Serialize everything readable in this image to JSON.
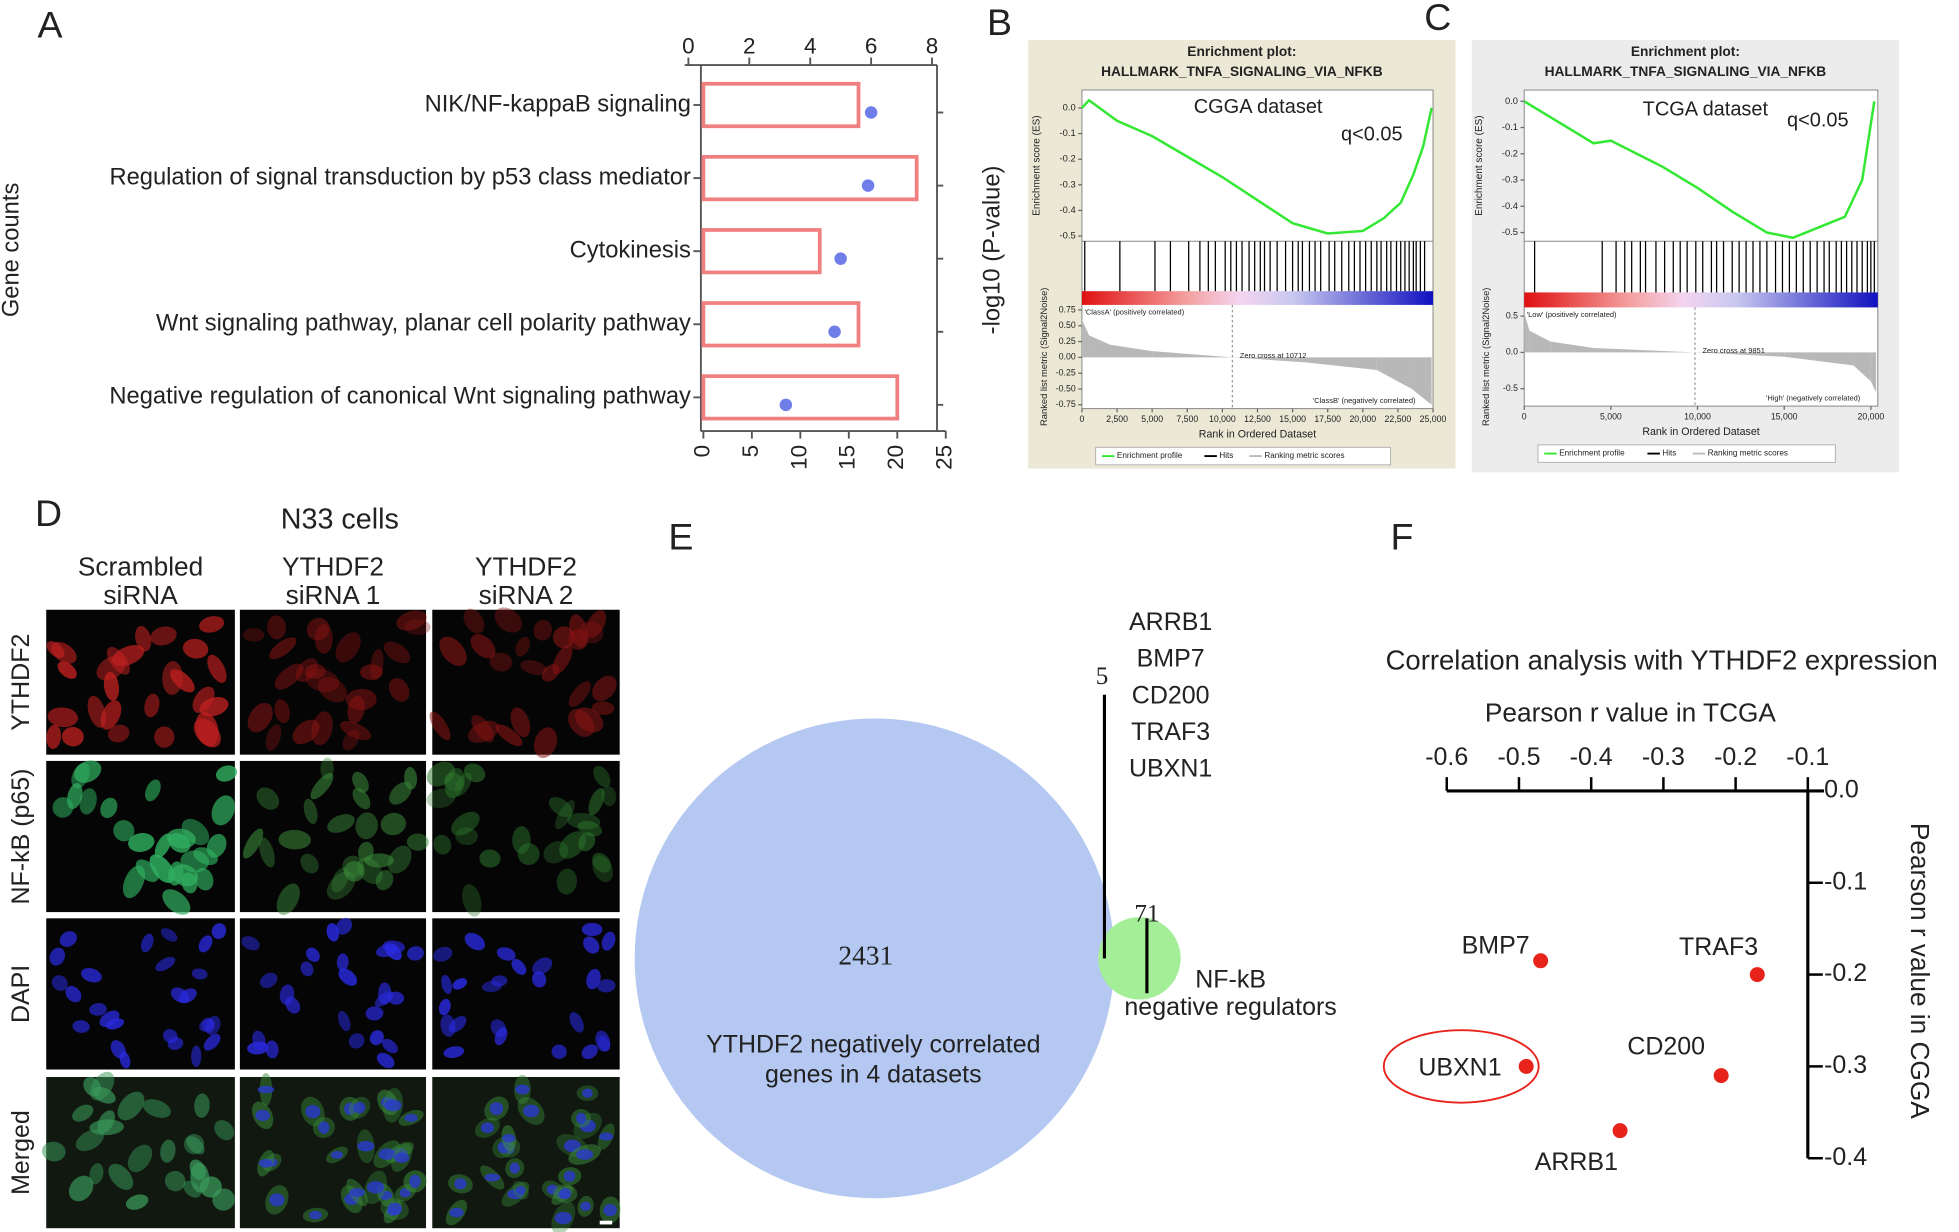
{
  "panel_labels": [
    "A",
    "B",
    "C",
    "D",
    "E",
    "F"
  ],
  "chart_data": [
    {
      "type": "bar",
      "orientation": "horizontal",
      "categories": [
        "NIK/NF-kappaB signaling",
        "Regulation of signal transduction by p53 class mediator",
        "Cytokinesis",
        "Wnt signaling pathway, planar cell polarity pathway",
        "Negative regulation of canonical Wnt signaling pathway"
      ],
      "values": [
        16,
        22,
        12,
        16,
        20
      ],
      "color": "#f08080",
      "xlabel": "Gene counts",
      "xlim": [
        0,
        25
      ],
      "xticks": [
        0,
        5,
        10,
        15,
        20,
        25
      ],
      "dot_values": [
        6.0,
        5.9,
        5.0,
        4.8,
        3.2
      ],
      "dot_color": "#6f7ee8",
      "x2label": "-log10 (P-value)",
      "x2lim": [
        0,
        8
      ],
      "x2ticks": [
        0,
        2,
        4,
        6,
        8
      ]
    },
    {
      "type": "gsea",
      "background": "#ece8d6",
      "title": "Enrichment plot:",
      "subtitle": "HALLMARK_TNFA_SIGNALING_VIA_NFKB",
      "annotation": "CGGA dataset",
      "annotation2": "q<0.05",
      "ylabel": "Enrichment score (ES)",
      "ylim": [
        -0.52,
        0.07
      ],
      "yticks": [
        {
          "value": 0,
          "label": "0.0"
        },
        -0.1,
        -0.2,
        -0.3,
        -0.4,
        -0.5
      ],
      "x": [
        0,
        500,
        2500,
        5000,
        7500,
        10000,
        12500,
        15000,
        17500,
        20000,
        21500,
        22700,
        23600,
        24300,
        24900
      ],
      "values": [
        0,
        0.03,
        -0.05,
        -0.11,
        -0.19,
        -0.27,
        -0.36,
        -0.45,
        -0.49,
        -0.48,
        -0.43,
        -0.37,
        -0.26,
        -0.15,
        0
      ],
      "color": "#33e833",
      "hits": [
        200,
        2700,
        5200,
        6300,
        7600,
        8400,
        9000,
        9500,
        10200,
        10600,
        11000,
        11400,
        11900,
        12300,
        12700,
        13000,
        13400,
        13900,
        14500,
        15000,
        15400,
        15700,
        16200,
        16600,
        17000,
        17600,
        18000,
        18500,
        19000,
        19400,
        19800,
        20200,
        20600,
        21000,
        21300,
        21700,
        22000,
        22400,
        22700,
        23000,
        23300,
        23600,
        23800,
        24100,
        24400
      ],
      "metric_label": "Ranked list metric (Signal2Noise)",
      "metric_lim": [
        -0.81,
        0.83
      ],
      "metric_ticks": [
        {
          "value": 0.75,
          "label": "0.75"
        },
        {
          "value": 0.5,
          "label": "0.50"
        },
        {
          "value": 0.25,
          "label": "0.25"
        },
        {
          "value": 0,
          "label": "0.00"
        },
        {
          "value": -0.25,
          "label": "-0.25"
        },
        {
          "value": -0.5,
          "label": "-0.50"
        },
        {
          "value": -0.75,
          "label": "-0.75"
        }
      ],
      "metric_x": [
        0,
        500,
        2000,
        5000,
        10712,
        16000,
        21000,
        23500,
        24900
      ],
      "metric": [
        0.6,
        0.35,
        0.2,
        0.1,
        0,
        -0.08,
        -0.2,
        -0.5,
        -0.75
      ],
      "pos_label": "'ClassA' (positively correlated)",
      "zero_cross": "Zero cross at 10712",
      "neg_label": "'ClassB' (negatively correlated)",
      "xlabel": "Rank in Ordered Dataset",
      "xlim": [
        0,
        25000
      ],
      "xticks": [
        0,
        {
          "value": 2500,
          "label": "2,500"
        },
        {
          "value": 5000,
          "label": "5,000"
        },
        {
          "value": 7500,
          "label": "7,500"
        },
        {
          "value": 10000,
          "label": "10,000"
        },
        {
          "value": 12500,
          "label": "12,500"
        },
        {
          "value": 15000,
          "label": "15,000"
        },
        {
          "value": 17500,
          "label": "17,500"
        },
        {
          "value": 20000,
          "label": "20,000"
        },
        {
          "value": 22500,
          "label": "22,500"
        },
        {
          "value": 25000,
          "label": "25,000"
        }
      ],
      "legend": [
        "Enrichment profile",
        "Hits",
        "Ranking metric scores"
      ]
    },
    {
      "type": "gsea",
      "background": "#ececec",
      "title": "Enrichment plot:",
      "subtitle": "HALLMARK_TNFA_SIGNALING_VIA_NFKB",
      "annotation": "TCGA dataset",
      "annotation2": "q<0.05",
      "ylabel": "Enrichment score (ES)",
      "ylim": [
        -0.533,
        0.043
      ],
      "yticks": [
        {
          "value": 0,
          "label": "0.0"
        },
        -0.1,
        -0.2,
        -0.3,
        -0.4,
        -0.5
      ],
      "x": [
        0,
        2000,
        4000,
        5000,
        8000,
        10000,
        12000,
        14000,
        15500,
        17000,
        18500,
        19500,
        20200
      ],
      "values": [
        0,
        -0.08,
        -0.16,
        -0.15,
        -0.25,
        -0.33,
        -0.42,
        -0.5,
        -0.52,
        -0.48,
        -0.44,
        -0.3,
        0
      ],
      "color": "#33e833",
      "hits": [
        600,
        4500,
        5300,
        5800,
        6200,
        6700,
        7000,
        7600,
        8100,
        8600,
        9000,
        9400,
        9900,
        10300,
        10800,
        11100,
        11500,
        12000,
        12400,
        12800,
        13200,
        13600,
        14000,
        14500,
        14900,
        15300,
        15700,
        16100,
        16500,
        16900,
        17300,
        17600,
        18000,
        18300,
        18600,
        18900,
        19200,
        19500,
        19800,
        20000,
        20200
      ],
      "metric_label": "Ranked list metric (Signal2Noise)",
      "metric_lim": [
        -0.74,
        0.62
      ],
      "metric_ticks": [
        0.5,
        {
          "value": 0,
          "label": "0.0"
        },
        -0.5
      ],
      "metric_x": [
        0,
        300,
        1500,
        4000,
        9851,
        15000,
        19000,
        20000,
        20300
      ],
      "metric": [
        0.55,
        0.3,
        0.15,
        0.06,
        0,
        -0.06,
        -0.18,
        -0.4,
        -0.55
      ],
      "pos_label": "'Low' (positively correlated)",
      "zero_cross": "Zero cross at 9851",
      "neg_label": "'High' (negatively correlated)",
      "xlabel": "Rank in Ordered Dataset",
      "xlim": [
        0,
        20400
      ],
      "xticks": [
        0,
        {
          "value": 5000,
          "label": "5,000"
        },
        {
          "value": 10000,
          "label": "10,000"
        },
        {
          "value": 15000,
          "label": "15,000"
        },
        {
          "value": 20000,
          "label": "20,000"
        }
      ],
      "legend": [
        "Enrichment profile",
        "Hits",
        "Ranking metric scores"
      ]
    },
    {
      "type": "scatter",
      "title": "Correlation analysis with YTHDF2 expression",
      "xlabel": "Pearson r value in TCGA",
      "ylabel": "Pearson r value in CGGA",
      "labels": [
        "BMP7",
        "TRAF3",
        "UBXN1",
        "CD200",
        "ARRB1"
      ],
      "x": [
        -0.47,
        -0.17,
        -0.49,
        -0.22,
        -0.36
      ],
      "values": [
        -0.185,
        -0.2,
        -0.3,
        -0.31,
        -0.37
      ],
      "color": "#e8231b",
      "xlim": [
        -0.6,
        -0.1
      ],
      "xticks": [
        -0.6,
        -0.5,
        -0.4,
        -0.3,
        -0.2,
        -0.1
      ],
      "ylim": [
        -0.4,
        0
      ],
      "yticks": [
        {
          "value": 0,
          "label": "0.0"
        },
        -0.1,
        -0.2,
        -0.3,
        -0.4
      ]
    }
  ],
  "microscopy": {
    "title": "N33 cells",
    "columns": [
      [
        "Scrambled",
        "siRNA"
      ],
      [
        "YTHDF2",
        "siRNA 1"
      ],
      [
        "YTHDF2",
        "siRNA 2"
      ]
    ],
    "rows": [
      "YTHDF2",
      "NF-kB (p65)",
      "DAPI",
      "Merged"
    ]
  },
  "venn": {
    "left_count": 2431,
    "overlap_count": 5,
    "right_count": 71,
    "left_label": [
      "YTHDF2 negatively correlated",
      "genes in 4 datasets"
    ],
    "right_label": [
      "NF-kB",
      "negative regulators"
    ],
    "genes": [
      "ARRB1",
      "BMP7",
      "CD200",
      "TRAF3",
      "UBXN1"
    ]
  }
}
